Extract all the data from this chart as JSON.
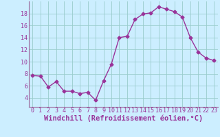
{
  "x": [
    0,
    1,
    2,
    3,
    4,
    5,
    6,
    7,
    8,
    9,
    10,
    11,
    12,
    13,
    14,
    15,
    16,
    17,
    18,
    19,
    20,
    21,
    22,
    23
  ],
  "y": [
    7.7,
    7.6,
    5.8,
    6.7,
    5.1,
    5.1,
    4.7,
    4.9,
    3.6,
    6.8,
    9.6,
    14.0,
    14.2,
    17.0,
    17.9,
    18.1,
    19.1,
    18.7,
    18.3,
    17.4,
    14.0,
    11.6,
    10.6,
    10.2
  ],
  "line_color": "#993399",
  "marker": "D",
  "markersize": 2.5,
  "linewidth": 1.0,
  "background_color": "#cceeff",
  "grid_color": "#99cccc",
  "xlabel": "Windchill (Refroidissement éolien,°C)",
  "xlabel_fontsize": 7.5,
  "xlim": [
    -0.5,
    23.5
  ],
  "ylim": [
    2.5,
    20.0
  ],
  "yticks": [
    4,
    6,
    8,
    10,
    12,
    14,
    16,
    18
  ],
  "xticks": [
    0,
    1,
    2,
    3,
    4,
    5,
    6,
    7,
    8,
    9,
    10,
    11,
    12,
    13,
    14,
    15,
    16,
    17,
    18,
    19,
    20,
    21,
    22,
    23
  ],
  "tick_fontsize": 6,
  "spine_color": "#996699"
}
